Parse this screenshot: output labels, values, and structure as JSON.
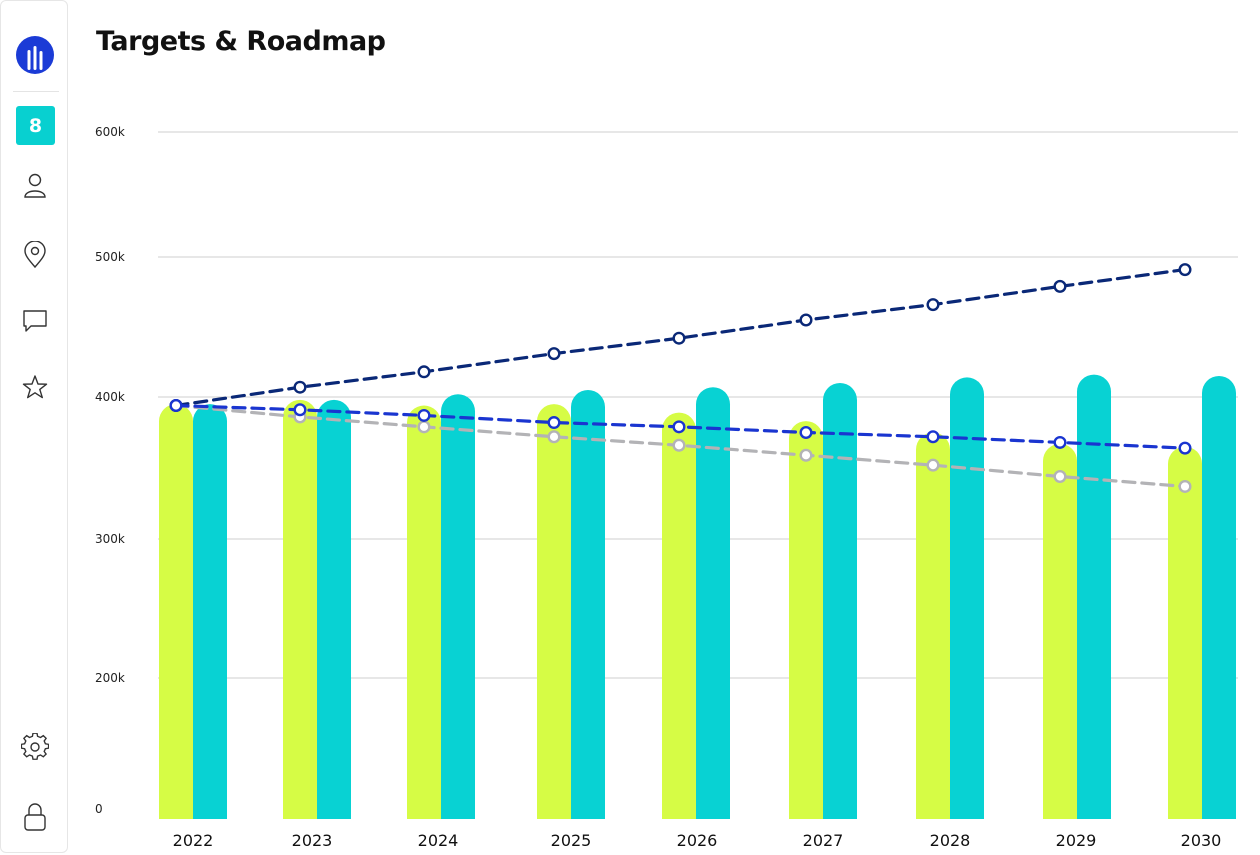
{
  "page": {
    "title": "Targets & Roadmap"
  },
  "sidebar": {
    "badge": "8",
    "items": [
      {
        "name": "logo-icon"
      },
      {
        "name": "user-icon"
      },
      {
        "name": "location-pin-icon"
      },
      {
        "name": "chat-icon"
      },
      {
        "name": "star-icon"
      },
      {
        "name": "gear-icon"
      },
      {
        "name": "lock-icon"
      }
    ]
  },
  "colors": {
    "lime": "#d6fc45",
    "teal": "#08d2d3",
    "navy": "#0a2877",
    "blue": "#1a35d0",
    "gray": "#b3b3b6",
    "accent": "#1b3bd6"
  },
  "chart_data": {
    "type": "bar",
    "categories": [
      "2022",
      "2023",
      "2024",
      "2025",
      "2026",
      "2027",
      "2028",
      "2029",
      "2030"
    ],
    "y_ticks": [
      {
        "value": 0,
        "label": "0"
      },
      {
        "value": 200000,
        "label": "200k"
      },
      {
        "value": 300000,
        "label": "300k"
      },
      {
        "value": 400000,
        "label": "400k"
      },
      {
        "value": 500000,
        "label": "500k"
      },
      {
        "value": 600000,
        "label": "600k"
      }
    ],
    "bar_series": [
      {
        "color": "#d6fc45",
        "values": [
          395000,
          398000,
          394000,
          395000,
          389000,
          383000,
          375000,
          367000,
          365000
        ]
      },
      {
        "color": "#08d2d3",
        "values": [
          395000,
          398000,
          402000,
          405000,
          407000,
          410000,
          414000,
          416000,
          415000
        ]
      }
    ],
    "line_series": [
      {
        "color": "#0a2877",
        "values": [
          394000,
          407000,
          418000,
          431000,
          442000,
          455000,
          466000,
          479000,
          491000
        ]
      },
      {
        "color": "#1a35d0",
        "values": [
          394000,
          391000,
          387000,
          382000,
          379000,
          375000,
          372000,
          368000,
          364000
        ]
      },
      {
        "color": "#b3b3b6",
        "values": [
          394000,
          386000,
          379000,
          372000,
          366000,
          359000,
          352000,
          344000,
          337000
        ]
      }
    ],
    "grid": true,
    "legend": "none"
  }
}
